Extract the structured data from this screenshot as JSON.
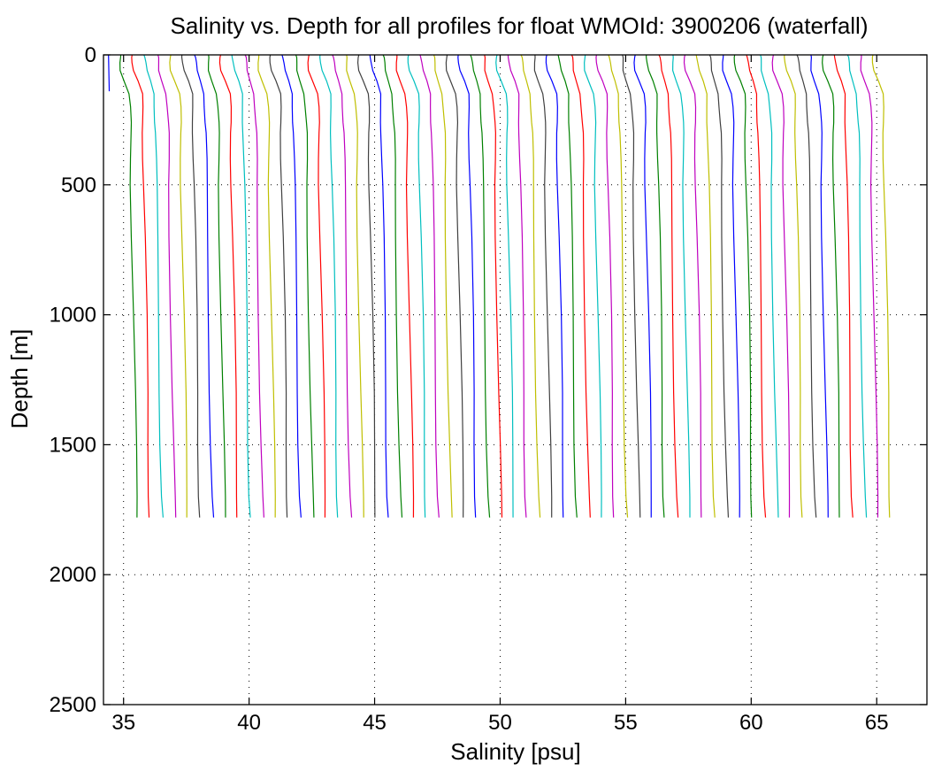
{
  "chart_data": {
    "type": "line",
    "title": "Salinity vs. Depth for all profiles for float WMOId: 3900206 (waterfall)",
    "xlabel": "Salinity [psu]",
    "ylabel": "Depth [m]",
    "xlim": [
      34.2,
      67
    ],
    "ylim": [
      0,
      2500
    ],
    "y_reversed": true,
    "x_ticks": [
      35,
      40,
      45,
      50,
      55,
      60,
      65
    ],
    "y_ticks": [
      0,
      500,
      1000,
      1500,
      2000,
      2500
    ],
    "grid": true,
    "grid_style": "dotted",
    "waterfall": {
      "first_profile_offset": 0,
      "offset_step_psu": 0.5,
      "profile_count": 62,
      "color_cycle": [
        "#0000ff",
        "#008000",
        "#ff0000",
        "#00bfbf",
        "#bf00bf",
        "#bfbf00",
        "#404040"
      ]
    },
    "base_profile": {
      "depth": [
        0,
        10,
        30,
        60,
        100,
        150,
        200,
        260,
        300,
        400,
        500,
        700,
        1000,
        1300,
        1500,
        1700,
        1780
      ],
      "salinity": [
        34.35,
        34.36,
        34.37,
        34.4,
        34.55,
        34.72,
        34.75,
        34.77,
        34.78,
        34.79,
        34.8,
        34.84,
        34.9,
        34.95,
        34.98,
        35.02,
        35.05
      ]
    },
    "first_profile_depth": [
      0,
      140
    ]
  }
}
